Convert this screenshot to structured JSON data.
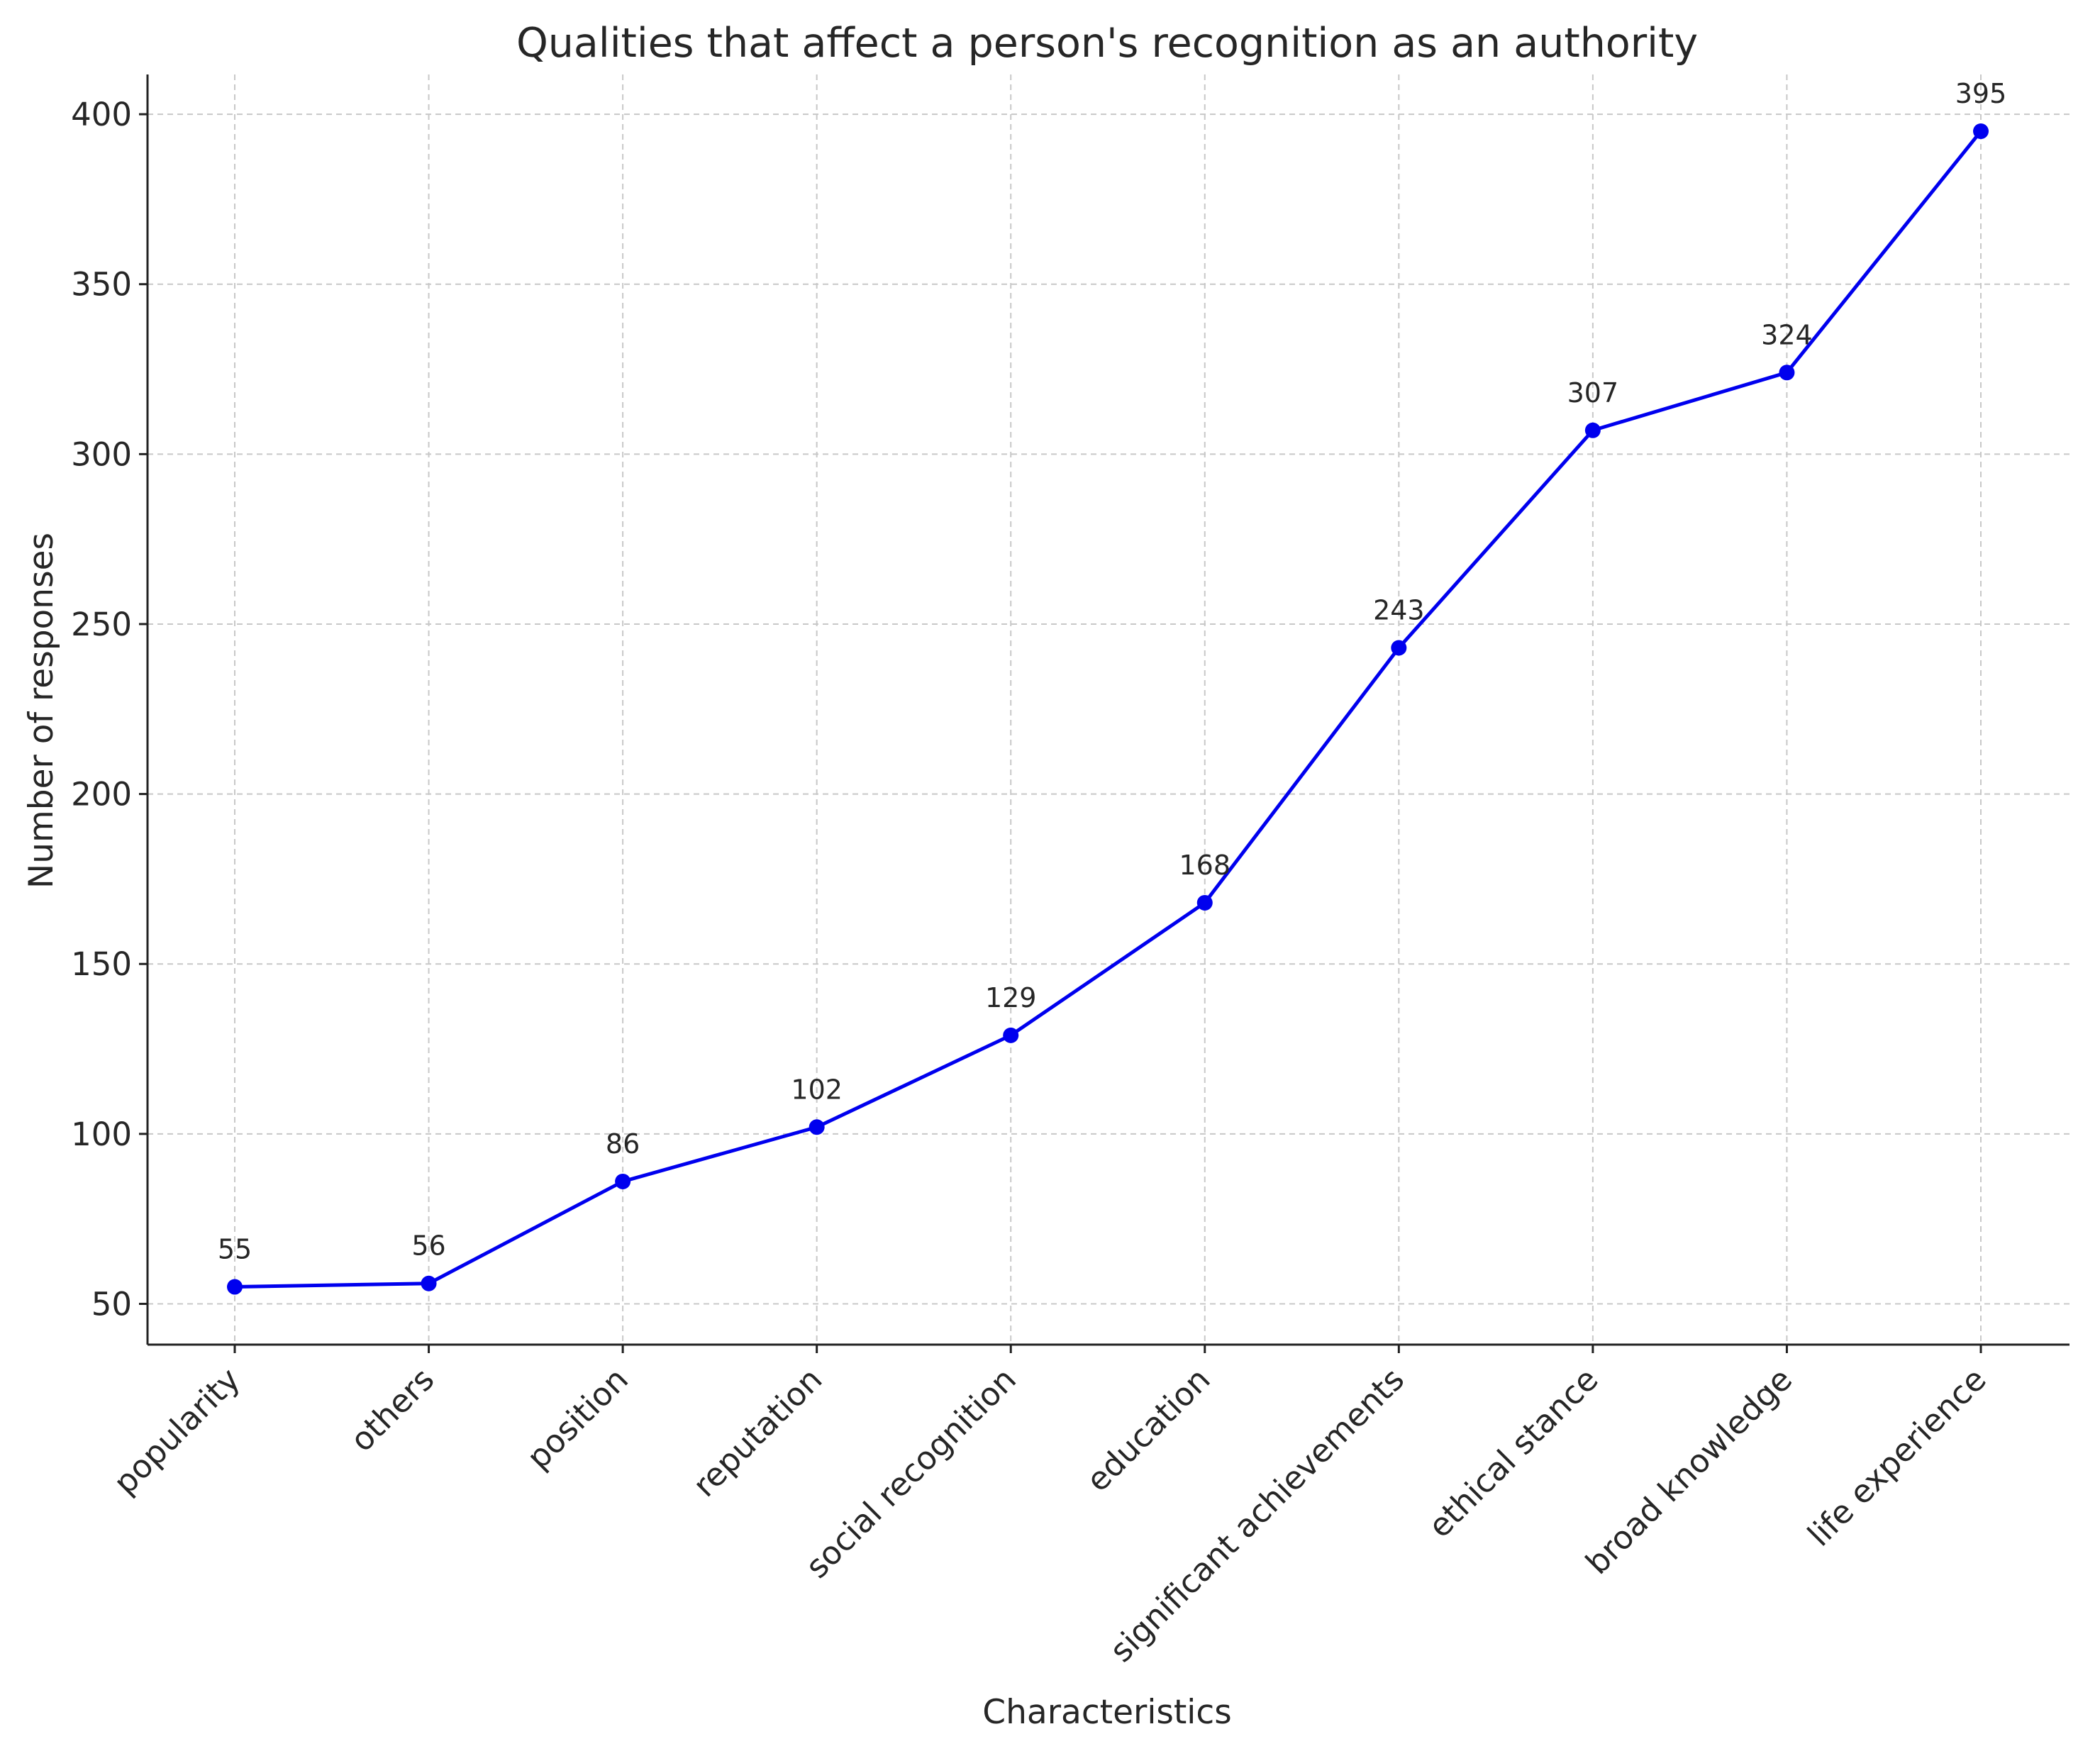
{
  "chart_data": {
    "type": "line",
    "title": "Qualities that affect a person's recognition as an authority",
    "xlabel": "Characteristics",
    "ylabel": "Number of responses",
    "categories": [
      "popularity",
      "others",
      "position",
      "reputation",
      "social recognition",
      "education",
      "significant achievements",
      "ethical stance",
      "broad knowledge",
      "life experience"
    ],
    "values": [
      55,
      56,
      86,
      102,
      129,
      168,
      243,
      307,
      324,
      395
    ],
    "data_labels": [
      "55",
      "56",
      "86",
      "102",
      "129",
      "168",
      "243",
      "307",
      "324",
      "395"
    ],
    "yticks": [
      50,
      100,
      150,
      200,
      250,
      300,
      350,
      400
    ],
    "ylim": [
      38.0,
      411.7
    ],
    "grid": true,
    "legend": "none",
    "colors": {
      "line": "#0000ee",
      "marker": "#0000ee",
      "grid": "#c8c8c8",
      "axis": "#222222",
      "text": "#262626"
    }
  }
}
